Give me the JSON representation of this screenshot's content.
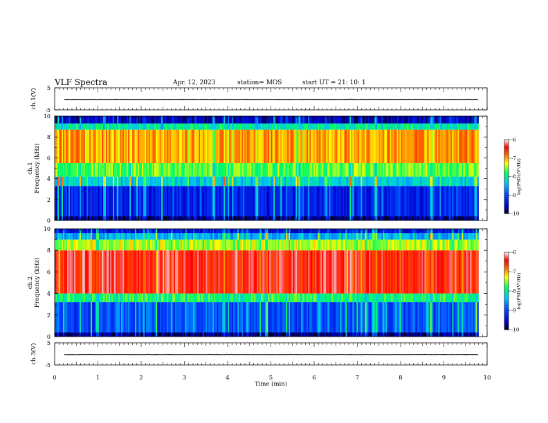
{
  "header": {
    "title": "VLF Spectra",
    "date": "Apr. 12, 2023",
    "station": "station= MOS",
    "start_ut": "start  UT =   21: 10: 1"
  },
  "colors": {
    "axis": "#000000",
    "colormap": [
      "#0000c8",
      "#0040ff",
      "#00bfff",
      "#00ff60",
      "#ffff00",
      "#ff6000",
      "#ff0000",
      "#ffffff"
    ]
  },
  "chart_data": [
    {
      "type": "line",
      "name": "ch1-voltage",
      "ylabel": "ch.1(V)",
      "ylim": [
        -5,
        5
      ],
      "yticks": [
        "5",
        "-5"
      ],
      "xlim": [
        0,
        10
      ],
      "x": [
        0,
        1,
        2,
        3,
        4,
        5,
        6,
        7,
        8,
        9,
        9.8
      ],
      "values": [
        -0.3,
        -0.3,
        -0.3,
        -0.3,
        -0.3,
        -0.3,
        -0.3,
        -0.3,
        -0.3,
        -0.3,
        -0.3
      ]
    },
    {
      "type": "heatmap",
      "name": "ch1-spectrogram",
      "ylabel": "ch.1\nFrequency (kHz)",
      "ylim": [
        0,
        10
      ],
      "yticks": [
        "0",
        "2",
        "4",
        "6",
        "8",
        "10"
      ],
      "xlim": [
        0,
        9.8
      ],
      "colorbar": {
        "label": "log(PSD)(V²/Hz)",
        "ticks": [
          "-6",
          "-7",
          "-8",
          "-9",
          "-10"
        ],
        "range": [
          -10,
          -6
        ]
      },
      "bands": [
        {
          "f": [
            0.0,
            0.4
          ],
          "log_psd": -9.8
        },
        {
          "f": [
            0.4,
            3.3
          ],
          "log_psd": -9.3
        },
        {
          "f": [
            3.3,
            4.2
          ],
          "log_psd": -8.3
        },
        {
          "f": [
            4.2,
            5.5
          ],
          "log_psd": -7.6
        },
        {
          "f": [
            5.5,
            8.7
          ],
          "log_psd": -7.0
        },
        {
          "f": [
            8.7,
            9.3
          ],
          "log_psd": -8.0
        },
        {
          "f": [
            9.3,
            10.0
          ],
          "log_psd": -9.6
        }
      ]
    },
    {
      "type": "heatmap",
      "name": "ch2-spectrogram",
      "ylabel": "ch.2\nFrequency (kHz)",
      "ylim": [
        0,
        10
      ],
      "yticks": [
        "0",
        "2",
        "4",
        "6",
        "8",
        "10"
      ],
      "xlim": [
        0,
        9.8
      ],
      "colorbar": {
        "label": "log(PSD)(V²/Hz)",
        "ticks": [
          "-6",
          "-7",
          "-8",
          "-9",
          "-10"
        ],
        "range": [
          -10,
          -6
        ]
      },
      "bands": [
        {
          "f": [
            0.0,
            0.4
          ],
          "log_psd": -9.8
        },
        {
          "f": [
            0.4,
            3.2
          ],
          "log_psd": -9.0
        },
        {
          "f": [
            3.2,
            4.0
          ],
          "log_psd": -7.8
        },
        {
          "f": [
            4.0,
            8.0
          ],
          "log_psd": -6.4
        },
        {
          "f": [
            8.0,
            9.0
          ],
          "log_psd": -7.4
        },
        {
          "f": [
            9.0,
            9.6
          ],
          "log_psd": -8.5
        },
        {
          "f": [
            9.6,
            10.0
          ],
          "log_psd": -9.4
        }
      ]
    },
    {
      "type": "line",
      "name": "ch3-voltage",
      "ylabel": "ch.3(V)",
      "ylim": [
        -5,
        5
      ],
      "yticks": [
        "5",
        "-5"
      ],
      "xlim": [
        0,
        10
      ],
      "xlabel": "Time  (min)",
      "x": [
        0,
        1,
        2,
        3,
        4,
        5,
        6,
        7,
        8,
        9,
        9.8
      ],
      "values": [
        -0.3,
        -0.3,
        -0.3,
        -0.3,
        -0.3,
        -0.3,
        -0.3,
        -0.3,
        -0.3,
        -0.3,
        -0.3
      ]
    }
  ],
  "x_axis": {
    "label": "Time  (min)",
    "ticks": [
      "0",
      "1",
      "2",
      "3",
      "4",
      "5",
      "6",
      "7",
      "8",
      "9",
      "10"
    ],
    "range": [
      0,
      10
    ]
  }
}
